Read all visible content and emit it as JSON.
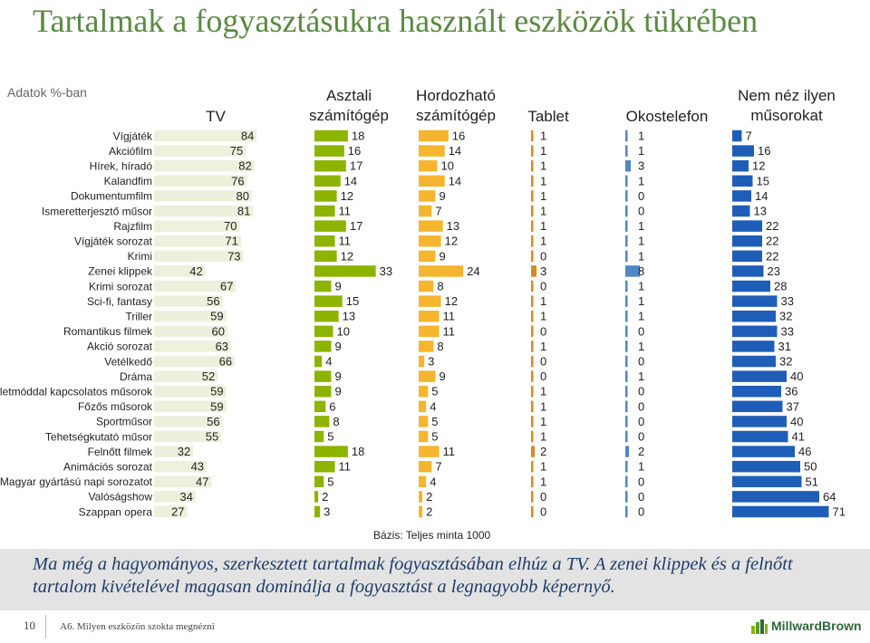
{
  "title": "Tartalmak a fogyasztásukra használt eszközök tükrében",
  "subtitle": "Adatok %-ban",
  "base_note": "Bázis: Teljes minta 1000",
  "conclusion": "Ma még a hagyományos, szerkesztett tartalmak fogyasztásában elhúz a TV. A zenei klippek és a felnőtt tartalom kivételével magasan dominálja a fogyasztást a legnagyobb képernyő.",
  "footer": {
    "page_number": "10",
    "question": "A6. Milyen eszközön szokta megnézni",
    "logo_text": "MillwardBrown"
  },
  "colors": {
    "tv": "#eef0dc",
    "desktop": "#8cb400",
    "portable": "#f5b52e",
    "tablet": "#d98a1e",
    "smartphone": "#4f86c6",
    "none": "#1f5eb8",
    "title": "#5a8a40",
    "band": "#e3e3e3",
    "conclusion": "#1f3d6b"
  },
  "chart_data": {
    "type": "bar",
    "title": "Tartalmak a fogyasztásukra használt eszközök tükrében",
    "unit": "%",
    "categories": [
      "Vígjáték",
      "Akciófilm",
      "Hírek, híradó",
      "Kalandfim",
      "Dokumentumfilm",
      "Ismeretterjesztő műsor",
      "Rajzfilm",
      "Vígjáték sorozat",
      "Krimi",
      "Zenei klippek",
      "Krimi sorozat",
      "Sci-fi, fantasy",
      "Triller",
      "Romantikus filmek",
      "Akció sorozat",
      "Vetélkedő",
      "Dráma",
      "Életmóddal kapcsolatos műsorok",
      "Főzős műsorok",
      "Sportműsor",
      "Tehetségkutató műsor",
      "Felnőtt filmek",
      "Animációs sorozat",
      "Magyar gyártású napi sorozatot",
      "Valóságshow",
      "Szappan opera"
    ],
    "series": [
      {
        "name": "TV",
        "label_lines": [
          "TV"
        ],
        "values": [
          84,
          75,
          82,
          76,
          80,
          81,
          70,
          71,
          73,
          42,
          67,
          56,
          59,
          60,
          63,
          66,
          52,
          59,
          59,
          56,
          55,
          32,
          43,
          47,
          34,
          27
        ]
      },
      {
        "name": "Asztali számítógép",
        "label_lines": [
          "Asztali",
          "számítógép"
        ],
        "values": [
          18,
          16,
          17,
          14,
          12,
          11,
          17,
          11,
          12,
          33,
          9,
          15,
          13,
          10,
          9,
          4,
          9,
          9,
          6,
          8,
          5,
          18,
          11,
          5,
          2,
          3
        ]
      },
      {
        "name": "Hordozható számítógép",
        "label_lines": [
          "Hordozható",
          "számítógép"
        ],
        "values": [
          16,
          14,
          10,
          14,
          9,
          7,
          13,
          12,
          9,
          24,
          8,
          12,
          11,
          11,
          8,
          3,
          9,
          5,
          4,
          5,
          5,
          11,
          7,
          4,
          2,
          2
        ]
      },
      {
        "name": "Tablet",
        "label_lines": [
          "Tablet"
        ],
        "values": [
          1,
          1,
          1,
          1,
          1,
          1,
          1,
          1,
          0,
          3,
          0,
          1,
          1,
          0,
          1,
          0,
          0,
          1,
          1,
          1,
          1,
          2,
          1,
          1,
          0,
          0
        ]
      },
      {
        "name": "Okostelefon",
        "label_lines": [
          "Okostelefon"
        ],
        "values": [
          1,
          1,
          3,
          1,
          0,
          0,
          1,
          1,
          1,
          8,
          1,
          1,
          1,
          0,
          1,
          0,
          1,
          0,
          0,
          0,
          0,
          2,
          1,
          0,
          0,
          0
        ]
      },
      {
        "name": "Nem néz ilyen műsorokat",
        "label_lines": [
          "Nem néz ilyen",
          "műsorokat"
        ],
        "values": [
          7,
          16,
          12,
          15,
          14,
          13,
          22,
          22,
          22,
          23,
          28,
          33,
          32,
          33,
          31,
          32,
          40,
          36,
          37,
          40,
          41,
          46,
          50,
          51,
          64,
          71
        ]
      }
    ]
  }
}
